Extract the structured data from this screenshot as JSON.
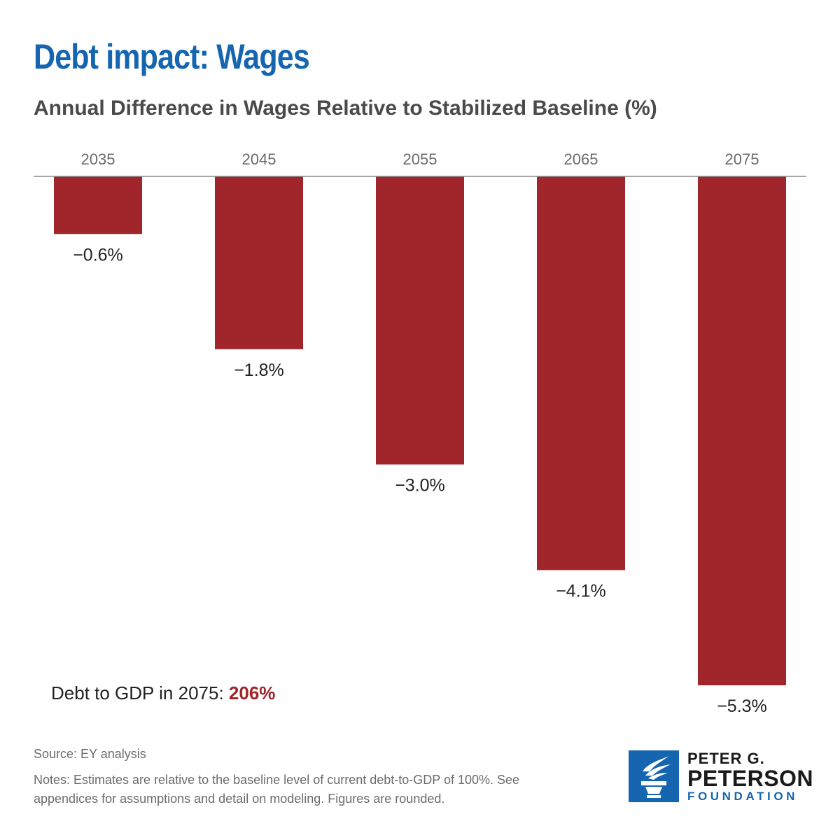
{
  "header": {
    "title": "Debt impact: Wages",
    "subtitle": "Annual Difference in Wages Relative to Stabilized Baseline (%)"
  },
  "chart_data": {
    "type": "bar",
    "categories": [
      "2035",
      "2045",
      "2055",
      "2065",
      "2075"
    ],
    "values": [
      -0.6,
      -1.8,
      -3.0,
      -4.1,
      -5.3
    ],
    "data_labels": [
      "−0.6%",
      "−1.8%",
      "−3.0%",
      "−4.1%",
      "−5.3%"
    ],
    "ylim": [
      -5.3,
      0
    ],
    "bar_color": "#a0262b",
    "axis_color": "#888888",
    "category_label_position": "top",
    "grid": false
  },
  "callout": {
    "label": "Debt to GDP in 2075: ",
    "value": "206%",
    "value_color": "#a0262b"
  },
  "footer": {
    "source": "Source: EY analysis",
    "notes": "Notes: Estimates are relative to the baseline level of current debt-to-GDP of 100%. See appendices for assumptions and detail on modeling. Figures are rounded."
  },
  "logo": {
    "line1": "PETER G.",
    "line2": "PETERSON",
    "line3": "FOUNDATION",
    "icon": "torch-icon",
    "color": "#1565b0"
  }
}
